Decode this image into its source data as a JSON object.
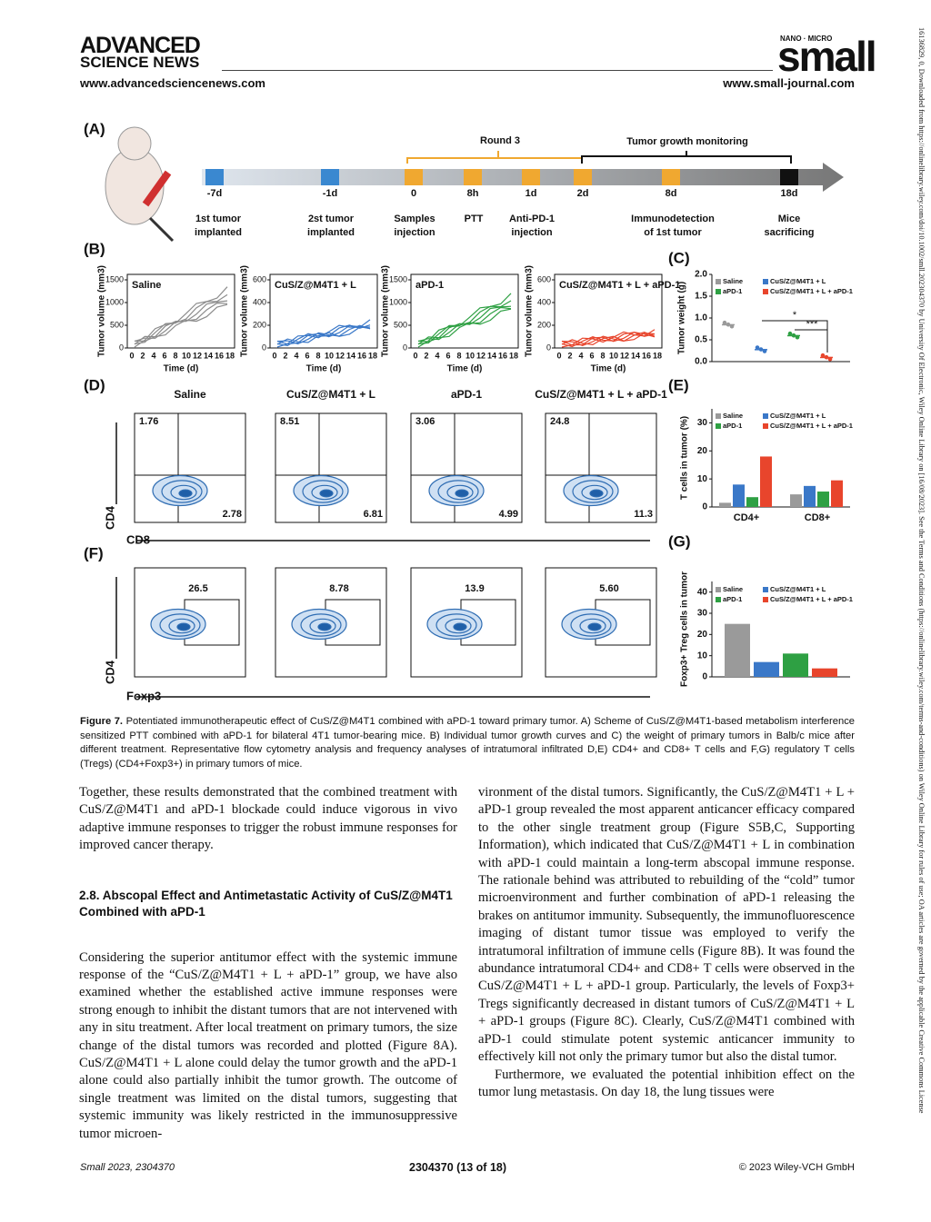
{
  "header": {
    "brand1": "ADVANCED",
    "brand2": "SCIENCE NEWS",
    "url_left": "www.advancedsciencenews.com",
    "journal_tag": "NANO · MICRO",
    "journal": "small",
    "url_right": "www.small-journal.com"
  },
  "figure": {
    "a": {
      "label": "(A)",
      "round": "Round 3",
      "monitoring": "Tumor growth monitoring",
      "days": [
        "-7d",
        "-1d",
        "0",
        "8h",
        "1d",
        "2d",
        "8d",
        "18d"
      ],
      "events": [
        [
          "1st tumor",
          "implanted"
        ],
        [
          "2st tumor",
          "implanted"
        ],
        [
          "Samples",
          "injection"
        ],
        [
          "PTT"
        ],
        [
          "Anti-PD-1",
          "injection"
        ],
        [
          "Immunodetection",
          "of 1st tumor"
        ],
        [
          "Mice",
          "sacrificing"
        ]
      ]
    },
    "b": {
      "label": "(B)",
      "ylabel": "Tumor volume (mm3)",
      "xlabel": "Time (d)",
      "xticks": [
        0,
        2,
        4,
        6,
        8,
        10,
        12,
        14,
        16,
        18
      ],
      "plots": [
        {
          "title": "Saline",
          "yticks": [
            0,
            500,
            1000,
            1500
          ],
          "color": "#8c8c8c"
        },
        {
          "title": "CuS/Z@M4T1 + L",
          "yticks": [
            0,
            200,
            400,
            600
          ],
          "color": "#3a78c8"
        },
        {
          "title": "aPD-1",
          "yticks": [
            0,
            500,
            1000,
            1500
          ],
          "color": "#2ea043"
        },
        {
          "title": "CuS/Z@M4T1 + L + aPD-1",
          "yticks": [
            0,
            200,
            400,
            600
          ],
          "color": "#e8452c"
        }
      ]
    },
    "c": {
      "label": "(C)",
      "ylabel": "Tumor weight (g)",
      "ylim": [
        0,
        2
      ],
      "yticks": [
        {
          "value": 0,
          "label": "0.0"
        },
        {
          "value": 0.5,
          "label": "0.5"
        },
        {
          "value": 1,
          "label": "1.0"
        },
        {
          "value": 1.5,
          "label": "1.5"
        },
        {
          "value": 2,
          "label": "2.0"
        }
      ],
      "series": [
        {
          "name": "Saline",
          "color": "#9a9a9a",
          "value": 0.85
        },
        {
          "name": "CuS/Z@M4T1 + L",
          "color": "#3a78c8",
          "value": 0.28
        },
        {
          "name": "aPD-1",
          "color": "#2ea043",
          "value": 0.6
        },
        {
          "name": "CuS/Z@M4T1 + L + aPD-1",
          "color": "#e8452c",
          "value": 0.1
        }
      ],
      "sig": [
        "*",
        "***"
      ]
    },
    "d": {
      "label": "(D)",
      "groups": [
        "Saline",
        "CuS/Z@M4T1 + L",
        "aPD-1",
        "CuS/Z@M4T1 + L + aPD-1"
      ],
      "top_left": [
        "1.76",
        "8.51",
        "3.06",
        "24.8"
      ],
      "bottom_right": [
        "2.78",
        "6.81",
        "4.99",
        "11.3"
      ],
      "yaxis": "CD4",
      "xaxis": "CD8"
    },
    "e": {
      "label": "(E)",
      "ylabel": "T cells in tumor (%)",
      "categories": [
        "CD4+",
        "CD8+"
      ],
      "ylim": [
        0,
        35
      ],
      "yticks": [
        0,
        10,
        20,
        30
      ],
      "series": [
        {
          "name": "Saline",
          "color": "#9a9a9a",
          "values": [
            1.5,
            4.5
          ]
        },
        {
          "name": "CuS/Z@M4T1 + L",
          "color": "#3a78c8",
          "values": [
            8,
            7.5
          ]
        },
        {
          "name": "aPD-1",
          "color": "#2ea043",
          "values": [
            3.5,
            5.5
          ]
        },
        {
          "name": "CuS/Z@M4T1 + L + aPD-1",
          "color": "#e8452c",
          "values": [
            18,
            9.5
          ]
        }
      ]
    },
    "f": {
      "label": "(F)",
      "gates": [
        "26.5",
        "8.78",
        "13.9",
        "5.60"
      ],
      "yaxis": "CD4",
      "xaxis": "Foxp3"
    },
    "g": {
      "label": "(G)",
      "ylabel": "Foxp3+ Treg cells in tumor",
      "ylim": [
        0,
        45
      ],
      "yticks": [
        0,
        10,
        20,
        30,
        40
      ],
      "series": [
        {
          "name": "Saline",
          "color": "#9a9a9a",
          "value": 25
        },
        {
          "name": "CuS/Z@M4T1 + L",
          "color": "#3a78c8",
          "value": 7
        },
        {
          "name": "aPD-1",
          "color": "#2ea043",
          "value": 11
        },
        {
          "name": "CuS/Z@M4T1 + L + aPD-1",
          "color": "#e8452c",
          "value": 4
        }
      ]
    }
  },
  "caption": {
    "label": "Figure 7.",
    "text": "Potentiated immunotherapeutic effect of CuS/Z@M4T1 combined with aPD-1 toward primary tumor. A) Scheme of CuS/Z@M4T1-based metabolism interference sensitized PTT combined with aPD-1 for bilateral 4T1 tumor-bearing mice. B) Individual tumor growth curves and C) the weight of primary tumors in Balb/c mice after different treatment. Representative flow cytometry analysis and frequency analyses of intratumoral infiltrated D,E) CD4+ and CD8+ T cells and F,G) regulatory T cells (Tregs) (CD4+Foxp3+) in primary tumors of mice."
  },
  "left": {
    "p1": "Together, these results demonstrated that the combined treatment with CuS/Z@M4T1 and aPD-1 blockade could induce vigorous in vivo adaptive immune responses to trigger the robust immune responses for improved cancer therapy.",
    "heading": "2.8. Abscopal Effect and Antimetastatic Activity of CuS/Z@M4T1 Combined with aPD-1",
    "p2": "Considering the superior antitumor effect with the systemic immune response of the “CuS/Z@M4T1 + L + aPD-1” group, we have also examined whether the established active immune responses were strong enough to inhibit the distant tumors that are not intervened with any in situ treatment. After local treatment on primary tumors, the size change of the distal tumors was recorded and plotted (Figure 8A). CuS/Z@M4T1 + L alone could delay the tumor growth and the aPD-1 alone could also partially inhibit the tumor growth. The outcome of single treatment was limited on the distal tumors, suggesting that systemic immunity was likely restricted in the immunosuppressive tumor microen-"
  },
  "right": {
    "p1": "vironment of the distal tumors. Significantly, the CuS/Z@M4T1 + L + aPD-1 group revealed the most apparent anticancer efficacy compared to the other single treatment group (Figure S5B,C, Supporting Information), which indicated that CuS/Z@M4T1 + L in combination with aPD-1 could maintain a long-term abscopal immune response. The rationale behind was attributed to rebuilding of the “cold” tumor microenvironment and further combination of aPD-1 releasing the brakes on antitumor immunity. Subsequently, the immunofluorescence imaging of distant tumor tissue was employed to verify the intratumoral infiltration of immune cells (Figure 8B). It was found the abundance intratumoral CD4+ and CD8+ T cells were observed in the CuS/Z@M4T1 + L + aPD-1 group. Particularly, the levels of Foxp3+ Tregs significantly decreased in distant tumors of CuS/Z@M4T1 + L + aPD-1 groups (Figure 8C). Clearly, CuS/Z@M4T1 combined with aPD-1 could stimulate potent systemic anticancer immunity to effectively kill not only the primary tumor but also the distal tumor.",
    "p2": "Furthermore, we evaluated the potential inhibition effect on the tumor lung metastasis. On day 18, the lung tissues were"
  },
  "footer": {
    "left": "Small 2023, 2304370",
    "center": "2304370 (13 of 18)",
    "right": "© 2023 Wiley-VCH GmbH"
  },
  "side": "16136829, 0, Downloaded from https://onlinelibrary.wiley.com/doi/10.1002/smll.202304370 by University Of Electronic, Wiley Online Library on [16/08/2023]. See the Terms and Conditions (https://onlinelibrary.wiley.com/terms-and-conditions) on Wiley Online Library for rules of use; OA articles are governed by the applicable Creative Commons License"
}
